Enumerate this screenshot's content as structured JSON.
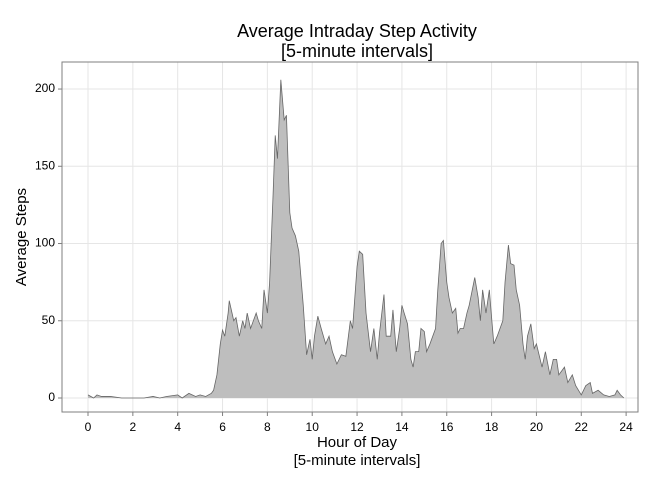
{
  "chart_data": {
    "type": "area",
    "title": "Average Intraday Step Activity",
    "subtitle": "[5-minute intervals]",
    "xlabel": [
      "Hour of Day",
      "[5-minute intervals]"
    ],
    "ylabel": "Average Steps",
    "x": [
      0,
      0.25,
      0.4,
      0.6,
      1,
      1.5,
      2,
      2.5,
      2.9,
      3.2,
      3.5,
      4,
      4.2,
      4.5,
      4.8,
      5,
      5.25,
      5.5,
      5.6,
      5.75,
      5.9,
      6,
      6.1,
      6.25,
      6.3,
      6.5,
      6.6,
      6.75,
      6.9,
      7,
      7.1,
      7.25,
      7.5,
      7.6,
      7.75,
      7.85,
      8,
      8.1,
      8.25,
      8.35,
      8.45,
      8.6,
      8.75,
      8.85,
      9,
      9.1,
      9.25,
      9.4,
      9.6,
      9.75,
      9.9,
      10,
      10.1,
      10.25,
      10.4,
      10.6,
      10.75,
      10.9,
      11.1,
      11.3,
      11.5,
      11.7,
      11.8,
      12,
      12.1,
      12.25,
      12.4,
      12.6,
      12.75,
      12.9,
      13,
      13.2,
      13.3,
      13.5,
      13.6,
      13.75,
      13.9,
      14,
      14.1,
      14.25,
      14.4,
      14.5,
      14.6,
      14.75,
      14.85,
      15,
      15.1,
      15.25,
      15.5,
      15.6,
      15.75,
      15.85,
      16,
      16.1,
      16.25,
      16.4,
      16.5,
      16.6,
      16.75,
      16.9,
      17,
      17.25,
      17.4,
      17.5,
      17.6,
      17.75,
      17.9,
      18,
      18.1,
      18.25,
      18.5,
      18.6,
      18.75,
      18.85,
      19,
      19.1,
      19.25,
      19.4,
      19.5,
      19.6,
      19.75,
      19.9,
      20,
      20.25,
      20.4,
      20.6,
      20.75,
      20.9,
      21,
      21.25,
      21.4,
      21.6,
      21.75,
      22,
      22.2,
      22.4,
      22.5,
      22.75,
      23,
      23.25,
      23.5,
      23.6,
      23.75,
      23.9
    ],
    "values": [
      2,
      0,
      2,
      1,
      1,
      0,
      0,
      0,
      1,
      0,
      1,
      2,
      0,
      3,
      1,
      2,
      1,
      3,
      5,
      15,
      35,
      44,
      40,
      55,
      63,
      50,
      52,
      40,
      50,
      45,
      55,
      45,
      55,
      50,
      45,
      70,
      55,
      75,
      130,
      170,
      155,
      206,
      180,
      183,
      120,
      110,
      105,
      95,
      60,
      28,
      38,
      25,
      40,
      53,
      45,
      35,
      40,
      30,
      22,
      28,
      27,
      50,
      45,
      85,
      95,
      93,
      55,
      30,
      45,
      25,
      42,
      67,
      40,
      40,
      57,
      30,
      45,
      60,
      55,
      48,
      25,
      20,
      30,
      30,
      45,
      43,
      30,
      35,
      45,
      70,
      100,
      102,
      75,
      65,
      55,
      58,
      42,
      45,
      45,
      55,
      60,
      78,
      65,
      50,
      70,
      55,
      70,
      52,
      35,
      40,
      50,
      75,
      99,
      87,
      86,
      70,
      60,
      35,
      25,
      40,
      48,
      32,
      35,
      20,
      30,
      15,
      25,
      25,
      15,
      20,
      10,
      15,
      8,
      2,
      8,
      10,
      3,
      5,
      2,
      1,
      2,
      5,
      2,
      0
    ],
    "color": "#bebebe",
    "line_color": "#666666",
    "xlim": [
      -1.16,
      24.53
    ],
    "xticks": [
      0,
      2,
      4,
      6,
      8,
      10,
      12,
      14,
      16,
      18,
      20,
      22,
      24
    ],
    "ylim": [
      -9.06,
      217.5
    ],
    "yticks": [
      0,
      50,
      100,
      150,
      200
    ],
    "grid": true
  }
}
